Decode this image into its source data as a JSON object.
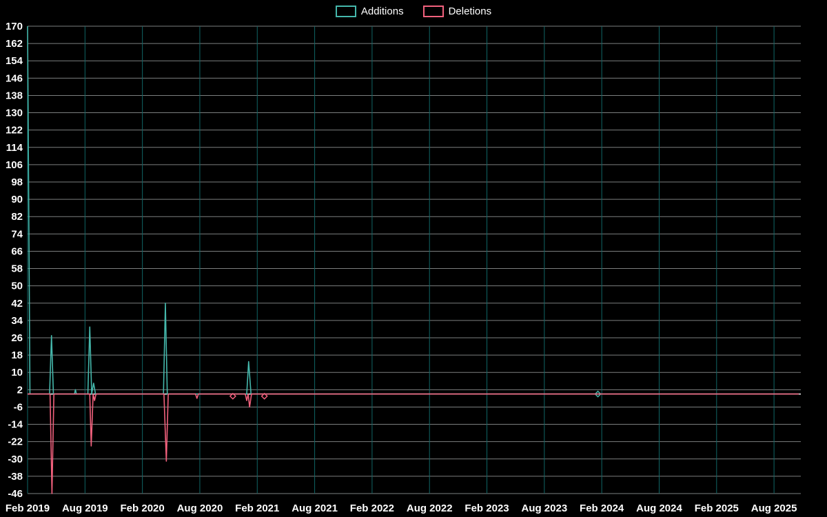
{
  "legend": {
    "items": [
      {
        "label": "Additions",
        "color": "#45b8ac"
      },
      {
        "label": "Deletions",
        "color": "#f2617d"
      }
    ]
  },
  "axes": {
    "y_tick_labels": [
      "170",
      "162",
      "154",
      "146",
      "138",
      "130",
      "122",
      "114",
      "106",
      "98",
      "90",
      "82",
      "74",
      "66",
      "58",
      "50",
      "42",
      "34",
      "26",
      "18",
      "10",
      "2",
      "-6",
      "-14",
      "-22",
      "-30",
      "-38",
      "-46"
    ],
    "y_dtick": 8,
    "x_tick_labels": [
      "Feb 2019",
      "Aug 2019",
      "Feb 2020",
      "Aug 2020",
      "Feb 2021",
      "Aug 2021",
      "Feb 2022",
      "Aug 2022",
      "Feb 2023",
      "Aug 2023",
      "Feb 2024",
      "Aug 2024",
      "Feb 2025",
      "Aug 2025"
    ],
    "x_tick_month_step": 6
  },
  "chart_data": {
    "type": "line",
    "title": "",
    "xlabel": "",
    "ylabel": "",
    "x_unit": "months since Feb 2019",
    "ylim": [
      -46,
      170
    ],
    "xlim_months": [
      0,
      80.8
    ],
    "grid": {
      "vertical_color": "#106666",
      "horizontal_color": "#cfd4d4",
      "zeroline_color": "#ffffff"
    },
    "background": "#000000",
    "legend_position": "top-center",
    "series": [
      {
        "name": "Additions",
        "color": "#45b8ac",
        "points": [
          [
            0,
            170
          ],
          [
            0.25,
            0
          ],
          [
            2.3,
            0
          ],
          [
            2.5,
            27
          ],
          [
            2.7,
            0
          ],
          [
            4.9,
            0
          ],
          [
            5.0,
            2
          ],
          [
            5.1,
            0
          ],
          [
            6.3,
            0
          ],
          [
            6.5,
            31
          ],
          [
            6.7,
            0
          ],
          [
            6.9,
            5
          ],
          [
            7.1,
            0
          ],
          [
            14.2,
            0
          ],
          [
            14.4,
            42
          ],
          [
            14.6,
            0
          ],
          [
            22.9,
            0
          ],
          [
            23.1,
            15
          ],
          [
            23.35,
            0
          ],
          [
            80.6,
            0
          ]
        ],
        "markers": [
          [
            59.6,
            0
          ]
        ]
      },
      {
        "name": "Deletions",
        "color": "#f2617d",
        "points": [
          [
            0,
            0
          ],
          [
            2.35,
            0
          ],
          [
            2.55,
            -46
          ],
          [
            2.75,
            0
          ],
          [
            6.5,
            0
          ],
          [
            6.65,
            -24
          ],
          [
            6.85,
            0
          ],
          [
            7.0,
            -3
          ],
          [
            7.15,
            0
          ],
          [
            14.25,
            0
          ],
          [
            14.5,
            -31
          ],
          [
            14.7,
            0
          ],
          [
            17.55,
            0
          ],
          [
            17.7,
            -2
          ],
          [
            17.85,
            0
          ],
          [
            22.75,
            0
          ],
          [
            22.9,
            -3
          ],
          [
            23.05,
            0
          ],
          [
            23.2,
            -6
          ],
          [
            23.4,
            0
          ],
          [
            80.6,
            0
          ]
        ],
        "markers": [
          [
            21.45,
            -1
          ],
          [
            24.75,
            -1
          ]
        ]
      }
    ]
  }
}
